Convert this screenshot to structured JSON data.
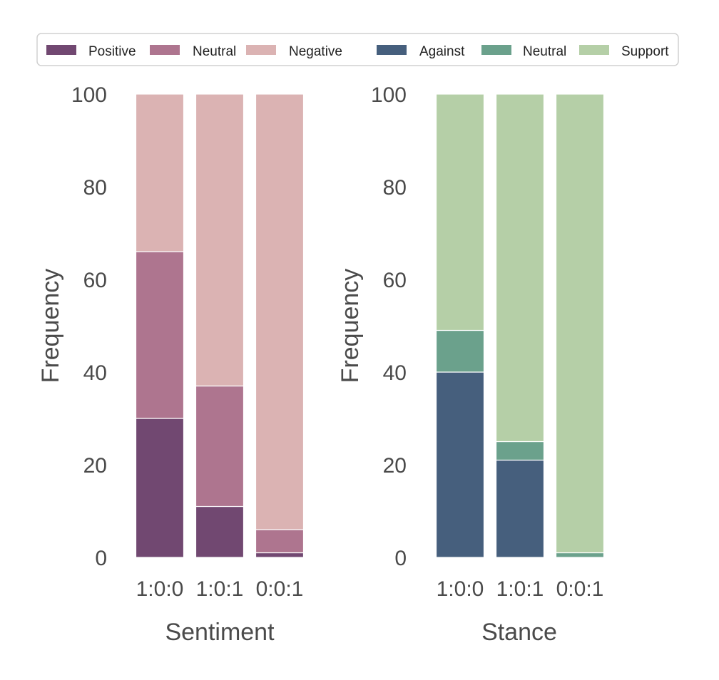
{
  "legend": {
    "items": [
      {
        "label": "Positive",
        "color": "#714871"
      },
      {
        "label": "Neutral",
        "color": "#ae758f"
      },
      {
        "label": "Negative",
        "color": "#dbb3b3"
      },
      {
        "label": "Against",
        "color": "#465f7d"
      },
      {
        "label": "Neutral",
        "color": "#6ba18c"
      },
      {
        "label": "Support",
        "color": "#b5cfa7"
      }
    ]
  },
  "chart_data": [
    {
      "type": "bar",
      "stacked": true,
      "title": "",
      "xlabel": "Sentiment",
      "ylabel": "Frequency",
      "ylim": [
        0,
        100
      ],
      "yticks": [
        "0",
        "20",
        "40",
        "60",
        "80",
        "100"
      ],
      "categories": [
        "1:0:0",
        "1:0:1",
        "0:0:1"
      ],
      "series": [
        {
          "name": "Positive",
          "color": "#714871",
          "values": [
            30,
            11,
            1
          ]
        },
        {
          "name": "Neutral",
          "color": "#ae758f",
          "values": [
            36,
            26,
            5
          ]
        },
        {
          "name": "Negative",
          "color": "#dbb3b3",
          "values": [
            34,
            63,
            94
          ]
        }
      ]
    },
    {
      "type": "bar",
      "stacked": true,
      "title": "",
      "xlabel": "Stance",
      "ylabel": "Frequency",
      "ylim": [
        0,
        100
      ],
      "yticks": [
        "0",
        "20",
        "40",
        "60",
        "80",
        "100"
      ],
      "categories": [
        "1:0:0",
        "1:0:1",
        "0:0:1"
      ],
      "series": [
        {
          "name": "Against",
          "color": "#465f7d",
          "values": [
            40,
            21,
            0
          ]
        },
        {
          "name": "Neutral",
          "color": "#6ba18c",
          "values": [
            9,
            4,
            1
          ]
        },
        {
          "name": "Support",
          "color": "#b5cfa7",
          "values": [
            51,
            75,
            99
          ]
        }
      ]
    }
  ]
}
